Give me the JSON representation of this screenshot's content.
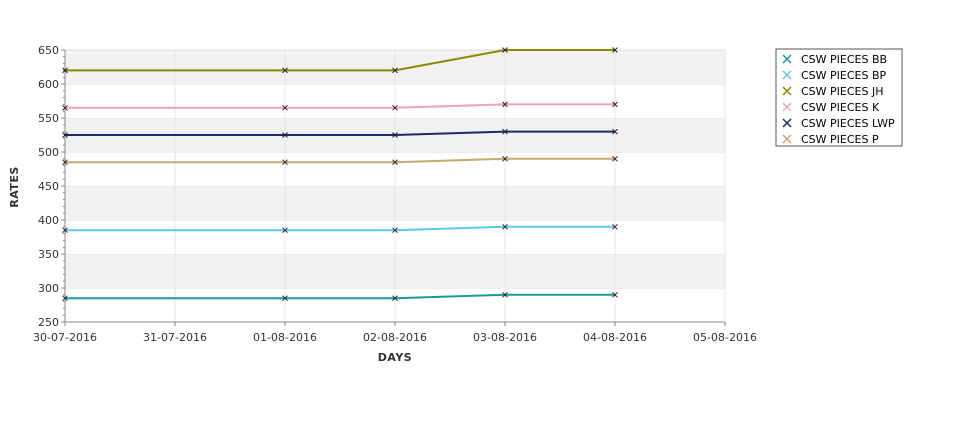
{
  "chart_data": {
    "type": "line",
    "xlabel": "DAYS",
    "ylabel": "RATES",
    "ylim": [
      250,
      650
    ],
    "yticks": [
      250,
      300,
      350,
      400,
      450,
      500,
      550,
      600,
      650
    ],
    "x_axis_ticks": [
      "30-07-2016",
      "31-07-2016",
      "01-08-2016",
      "02-08-2016",
      "03-08-2016",
      "04-08-2016",
      "05-08-2016"
    ],
    "x": [
      "30-07-2016",
      "01-08-2016",
      "02-08-2016",
      "03-08-2016",
      "04-08-2016"
    ],
    "grid": true,
    "legend_position": "top-right",
    "series": [
      {
        "name": "CSW PIECES BB",
        "color": "#1a9a9a",
        "values": [
          285,
          285,
          285,
          290,
          290
        ]
      },
      {
        "name": "CSW PIECES BP",
        "color": "#5bc8ea",
        "values": [
          385,
          385,
          385,
          390,
          390
        ]
      },
      {
        "name": "CSW PIECES JH",
        "color": "#8a8a00",
        "values": [
          620,
          620,
          620,
          650,
          650
        ]
      },
      {
        "name": "CSW PIECES K",
        "color": "#f0a0c0",
        "values": [
          565,
          565,
          565,
          570,
          570
        ]
      },
      {
        "name": "CSW PIECES LWP",
        "color": "#1a2a6a",
        "values": [
          525,
          525,
          525,
          530,
          530
        ]
      },
      {
        "name": "CSW PIECES P",
        "color": "#c8a870",
        "values": [
          485,
          485,
          485,
          490,
          490
        ]
      }
    ]
  }
}
